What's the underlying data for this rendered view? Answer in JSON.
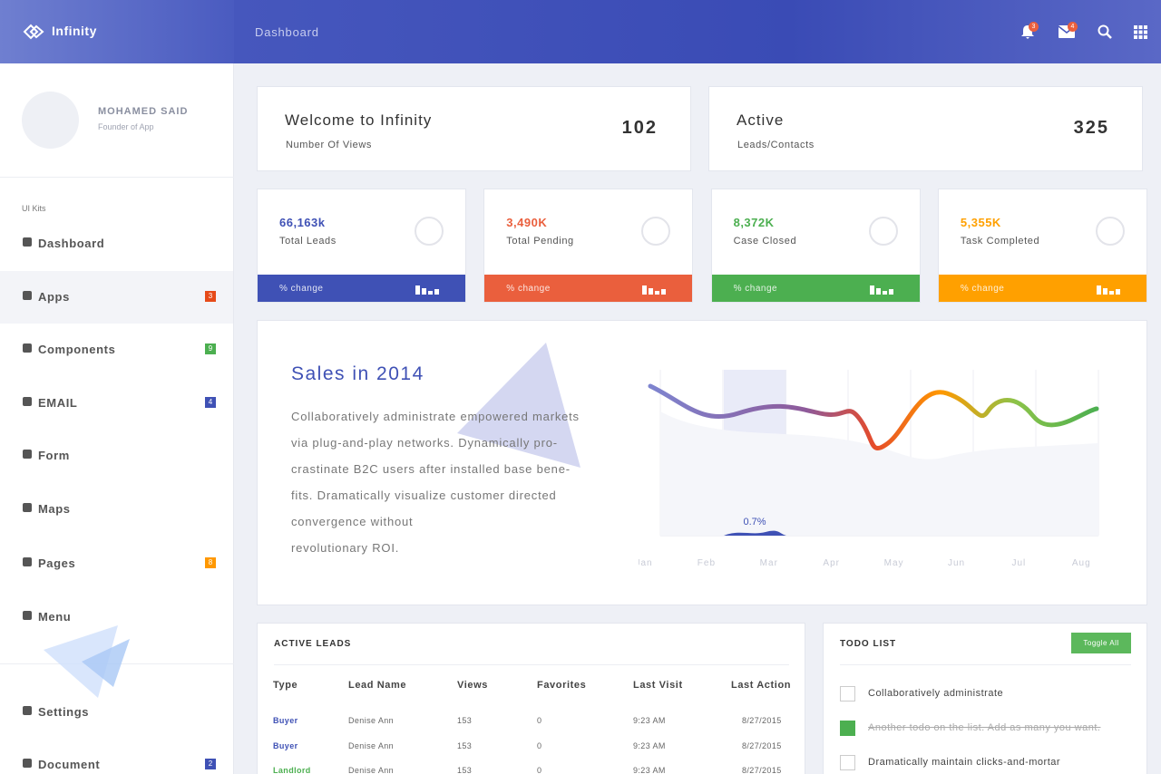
{
  "brand": "Infinity",
  "topbar": {
    "title": "Dashboard",
    "notifications": 3,
    "messages": 4
  },
  "profile": {
    "name": "MOHAMED SAID",
    "role": "Founder of App"
  },
  "sidebar": {
    "section": "UI Kits",
    "items": [
      {
        "label": "Dashboard"
      },
      {
        "label": "Apps",
        "badge": 3,
        "color": "#e64a19"
      },
      {
        "label": "Components",
        "badge": 9,
        "color": "#4caf50"
      },
      {
        "label": "EMAIL",
        "badge": 4,
        "color": "#3f51b5"
      },
      {
        "label": "Form"
      },
      {
        "label": "Maps"
      },
      {
        "label": "Pages",
        "badge": 8,
        "color": "#ff9800"
      },
      {
        "label": "Menu"
      }
    ],
    "bottom": [
      {
        "label": "Settings"
      },
      {
        "label": "Document",
        "badge": 2,
        "color": "#3f51b5"
      }
    ]
  },
  "welcome": [
    {
      "title": "Welcome to Infinity",
      "subtitle": "Number Of Views",
      "value": 102
    },
    {
      "title": "Active",
      "subtitle": "Leads/Contacts",
      "value": 325
    }
  ],
  "stats": [
    {
      "value": "66,163k",
      "label": "Total Leads",
      "change": "% change",
      "color": "#3f51b5"
    },
    {
      "value": "3,490K",
      "label": "Total Pending",
      "change": "% change",
      "color": "#ea5f3d"
    },
    {
      "value": "8,372K",
      "label": "Case Closed",
      "change": "% change",
      "color": "#4caf50"
    },
    {
      "value": "5,355K",
      "label": "Task Completed",
      "change": "% change",
      "color": "#ffa000"
    }
  ],
  "sales": {
    "title": "Sales in 2014",
    "lines": [
      "Collaboratively administrate empowered markets",
      "via plug-and-play networks. Dynamically pro-",
      "crastinate B2C users after installed base bene-",
      "fits. Dramatically visualize customer directed",
      "convergence without",
      "revolutionary ROI."
    ],
    "months": [
      "Jan",
      "Feb",
      "Mar",
      "Apr",
      "May",
      "Jun",
      "Jul",
      "Aug"
    ],
    "highlight": "0.7%"
  },
  "leads": {
    "title": "ACTIVE LEADS",
    "columns": [
      "Type",
      "Lead Name",
      "Views",
      "Favorites",
      "Last Visit",
      "Last Action"
    ],
    "rows": [
      {
        "color": "#3f51b5",
        "cells": [
          "Buyer",
          "Denise Ann",
          153,
          0,
          "9:23 AM",
          "8/27/2015"
        ]
      },
      {
        "color": "#3f51b5",
        "cells": [
          "Buyer",
          "Denise Ann",
          153,
          0,
          "9:23 AM",
          "8/27/2015"
        ]
      },
      {
        "color": "#4caf50",
        "cells": [
          "Landlord",
          "Denise Ann",
          153,
          0,
          "9:23 AM",
          "8/27/2015"
        ]
      }
    ]
  },
  "todo": {
    "title": "TODO LIST",
    "button": "Toggle All",
    "items": [
      {
        "text": "Collaboratively administrate",
        "done": false
      },
      {
        "text": "Another todo on the list. Add as many you want.",
        "done": true
      },
      {
        "text": "Dramatically maintain clicks-and-mortar",
        "done": false
      }
    ]
  }
}
